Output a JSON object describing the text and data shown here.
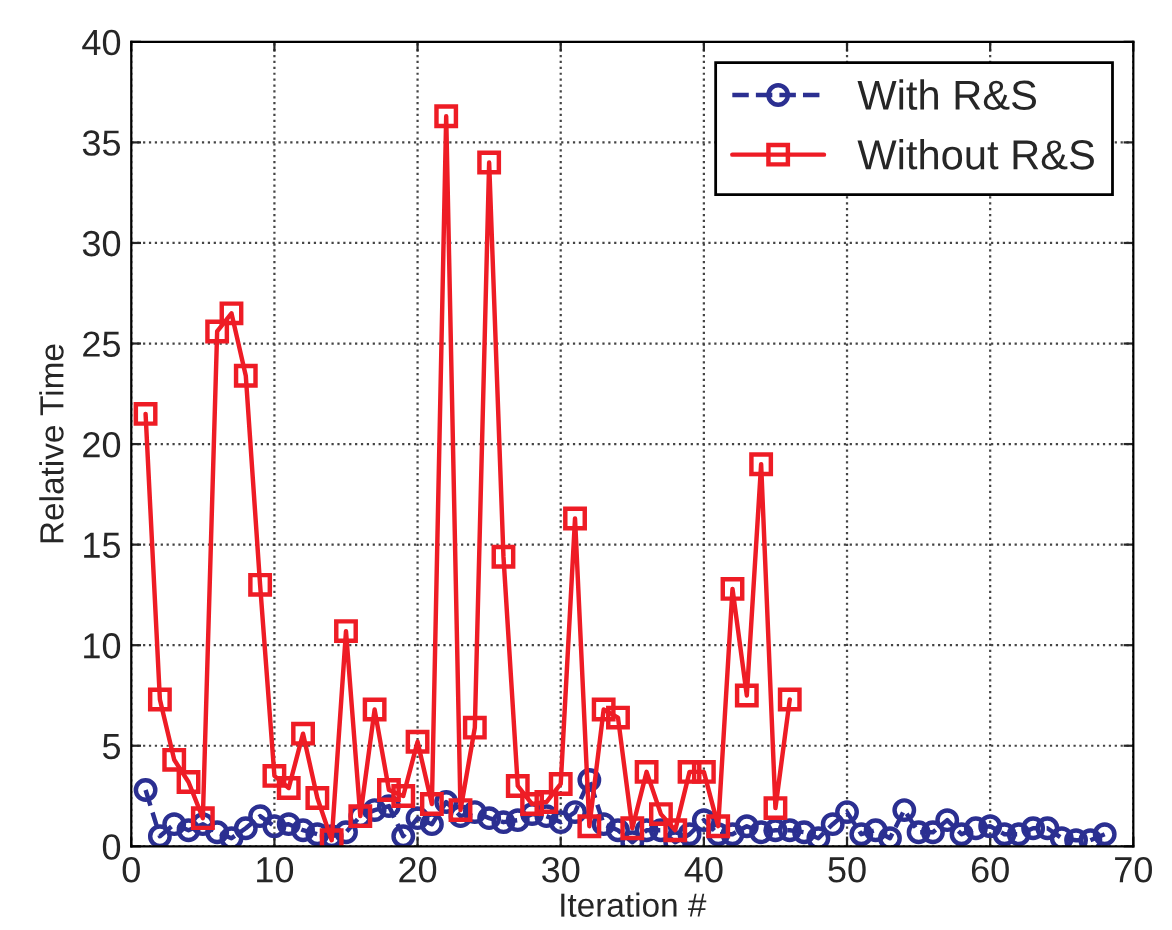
{
  "chart_data": {
    "type": "line",
    "xlabel": "Iteration #",
    "ylabel": "Relative Time",
    "xlim": [
      0,
      70
    ],
    "xticks": [
      0,
      10,
      20,
      30,
      40,
      50,
      60,
      70
    ],
    "ylim": [
      0,
      40
    ],
    "yticks": [
      0,
      5,
      10,
      15,
      20,
      25,
      30,
      35,
      40
    ],
    "grid": true,
    "legend": "top right",
    "series": [
      {
        "name": "With R&S",
        "color": "#2b2f91",
        "marker": "circle",
        "line_style": "dashed",
        "x": [
          1,
          2,
          3,
          4,
          5,
          6,
          7,
          8,
          9,
          10,
          11,
          12,
          13,
          14,
          15,
          16,
          17,
          18,
          19,
          20,
          21,
          22,
          23,
          24,
          25,
          26,
          27,
          28,
          29,
          30,
          31,
          32,
          33,
          34,
          35,
          36,
          37,
          38,
          39,
          40,
          41,
          42,
          43,
          44,
          45,
          46,
          47,
          48,
          49,
          50,
          51,
          52,
          53,
          54,
          55,
          56,
          57,
          58,
          59,
          60,
          61,
          62,
          63,
          64,
          65,
          66,
          67,
          68
        ],
        "values": [
          2.8,
          0.5,
          1.1,
          0.8,
          1.1,
          0.7,
          0.4,
          0.9,
          1.5,
          1.0,
          1.1,
          0.8,
          0.6,
          0.5,
          0.7,
          1.5,
          1.8,
          2.0,
          0.5,
          1.4,
          1.1,
          2.2,
          1.5,
          1.7,
          1.4,
          1.2,
          1.3,
          1.6,
          1.5,
          1.2,
          1.7,
          3.3,
          1.1,
          0.8,
          0.2,
          0.8,
          0.8,
          0.2,
          0.6,
          1.3,
          0.6,
          0.6,
          1.0,
          0.7,
          0.8,
          0.8,
          0.7,
          0.4,
          1.1,
          1.7,
          0.6,
          0.8,
          0.4,
          1.8,
          0.7,
          0.7,
          1.3,
          0.6,
          0.9,
          1.0,
          0.6,
          0.6,
          0.9,
          0.9,
          0.4,
          0.3,
          0.3,
          0.6
        ]
      },
      {
        "name": "Without R&S",
        "color": "#ee1c25",
        "marker": "square",
        "line_style": "solid",
        "x": [
          1,
          2,
          3,
          4,
          5,
          6,
          7,
          8,
          9,
          10,
          11,
          12,
          13,
          14,
          15,
          16,
          17,
          18,
          19,
          20,
          21,
          22,
          23,
          24,
          25,
          26,
          27,
          28,
          29,
          30,
          31,
          32,
          33,
          34,
          35,
          36,
          37,
          38,
          39,
          40,
          41,
          42,
          43,
          44,
          45,
          46
        ],
        "values": [
          21.5,
          7.3,
          4.3,
          3.2,
          1.4,
          25.6,
          26.5,
          23.4,
          13.0,
          3.5,
          2.9,
          5.6,
          2.4,
          0.3,
          10.7,
          1.5,
          6.8,
          2.8,
          2.5,
          5.2,
          2.1,
          36.3,
          1.8,
          5.9,
          34.0,
          14.4,
          3.0,
          2.1,
          2.2,
          3.1,
          16.3,
          1.0,
          6.8,
          6.4,
          0.9,
          3.7,
          1.6,
          0.8,
          3.7,
          3.7,
          1.0,
          12.8,
          7.5,
          19.0,
          1.9,
          7.3
        ]
      }
    ]
  }
}
